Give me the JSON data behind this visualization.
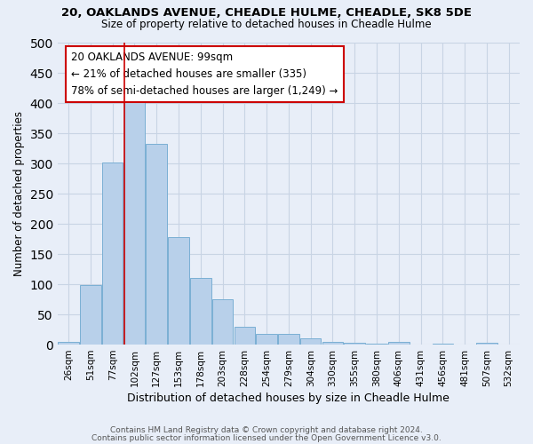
{
  "title1": "20, OAKLANDS AVENUE, CHEADLE HULME, CHEADLE, SK8 5DE",
  "title2": "Size of property relative to detached houses in Cheadle Hulme",
  "xlabel": "Distribution of detached houses by size in Cheadle Hulme",
  "ylabel": "Number of detached properties",
  "footer1": "Contains HM Land Registry data © Crown copyright and database right 2024.",
  "footer2": "Contains public sector information licensed under the Open Government Licence v3.0.",
  "bar_labels": [
    "26sqm",
    "51sqm",
    "77sqm",
    "102sqm",
    "127sqm",
    "153sqm",
    "178sqm",
    "203sqm",
    "228sqm",
    "254sqm",
    "279sqm",
    "304sqm",
    "330sqm",
    "355sqm",
    "380sqm",
    "406sqm",
    "431sqm",
    "456sqm",
    "481sqm",
    "507sqm",
    "532sqm"
  ],
  "bar_values": [
    4,
    99,
    302,
    413,
    332,
    178,
    111,
    75,
    30,
    18,
    18,
    10,
    5,
    3,
    2,
    5,
    0,
    2,
    0,
    3,
    0
  ],
  "bar_color": "#b8d0ea",
  "bar_edge_color": "#7aafd4",
  "grid_color": "#c8d4e4",
  "background_color": "#e8eef8",
  "vline_x_index": 3,
  "vline_color": "#cc0000",
  "annotation_line1": "20 OAKLANDS AVENUE: 99sqm",
  "annotation_line2": "← 21% of detached houses are smaller (335)",
  "annotation_line3": "78% of semi-detached houses are larger (1,249) →",
  "annotation_box_color": "#ffffff",
  "annotation_box_edge": "#cc0000",
  "ylim": [
    0,
    500
  ],
  "yticks": [
    0,
    50,
    100,
    150,
    200,
    250,
    300,
    350,
    400,
    450,
    500
  ]
}
